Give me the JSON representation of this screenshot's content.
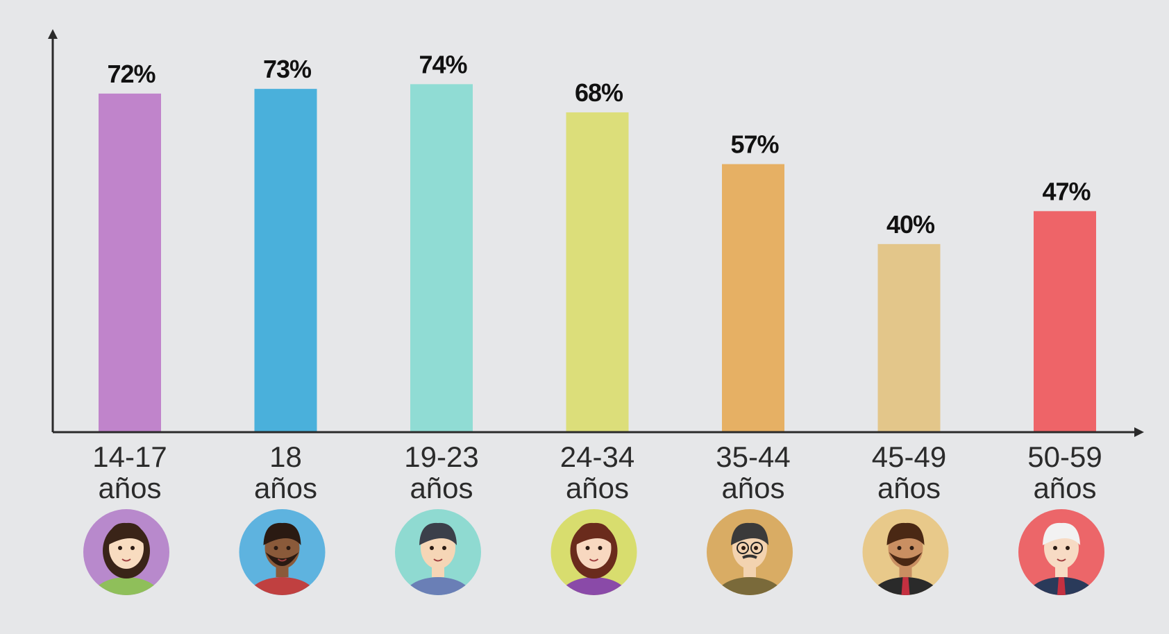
{
  "chart_data": {
    "type": "bar",
    "categories": [
      [
        "14-17",
        "años"
      ],
      [
        "18",
        "años"
      ],
      [
        "19-23",
        "años"
      ],
      [
        "24-34",
        "años"
      ],
      [
        "35-44",
        "años"
      ],
      [
        "45-49",
        "años"
      ],
      [
        "50-59",
        "años"
      ]
    ],
    "values": [
      72,
      73,
      74,
      68,
      57,
      40,
      47
    ],
    "data_labels": [
      "72%",
      "73%",
      "74%",
      "68%",
      "57%",
      "40%",
      "47%"
    ],
    "unit": "%",
    "ylim": [
      0,
      86
    ],
    "grid": false,
    "legend": "none",
    "axis_color": "#2a2a2a",
    "background": "#e6e7e9",
    "colors": [
      "#c084cb",
      "#4ab0db",
      "#90dcd4",
      "#dcde7a",
      "#e6b064",
      "#e3c68a",
      "#ee6468"
    ],
    "avatars": [
      {
        "icon": "girl-braid-avatar-icon",
        "bg": "#b889cc"
      },
      {
        "icon": "young-man-headphones-avatar-icon",
        "bg": "#5eb3df"
      },
      {
        "icon": "young-man-shirt-avatar-icon",
        "bg": "#8fdad1"
      },
      {
        "icon": "woman-curly-hair-avatar-icon",
        "bg": "#d8dd6e"
      },
      {
        "icon": "man-glasses-mustache-avatar-icon",
        "bg": "#d9ac64"
      },
      {
        "icon": "bearded-man-avatar-icon",
        "bg": "#e8c98a"
      },
      {
        "icon": "elderly-man-avatar-icon",
        "bg": "#ec6669"
      }
    ]
  }
}
